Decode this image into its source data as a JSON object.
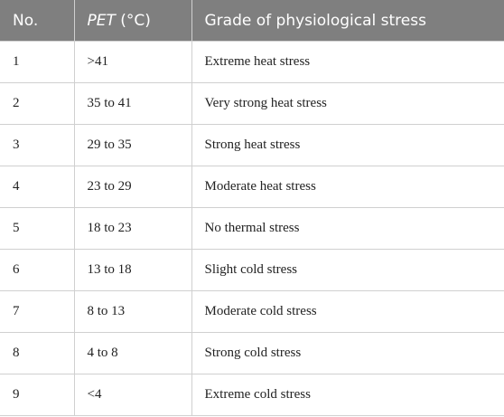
{
  "table": {
    "header": [
      "No.",
      {
        "emphasis": "PET",
        "text": "(°C)"
      },
      "Grade of physiological stress"
    ],
    "rows": [
      [
        "1",
        ">41",
        "Extreme heat stress"
      ],
      [
        "2",
        "35 to 41",
        "Very strong heat stress"
      ],
      [
        "3",
        "29 to 35",
        "Strong heat stress"
      ],
      [
        "4",
        "23 to 29",
        "Moderate heat stress"
      ],
      [
        "5",
        "18 to 23",
        "No thermal stress"
      ],
      [
        "6",
        "13 to 18",
        "Slight cold stress"
      ],
      [
        "7",
        "8 to 13",
        "Moderate cold stress"
      ],
      [
        "8",
        "4 to 8",
        "Strong cold stress"
      ],
      [
        "9",
        "<4",
        "Extreme cold stress"
      ]
    ]
  }
}
